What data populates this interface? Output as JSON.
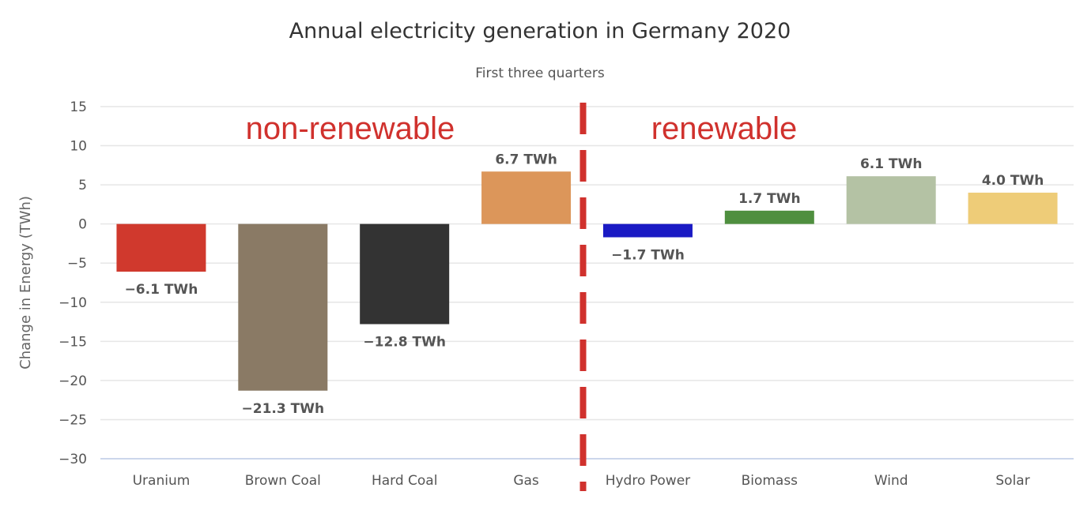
{
  "chart_data": {
    "type": "bar",
    "title": "Annual electricity generation in Germany 2020",
    "subtitle": "First three quarters",
    "xlabel": "",
    "ylabel": "Change in Energy (TWh)",
    "ylim": [
      -30,
      15
    ],
    "yticks": [
      15,
      10,
      5,
      0,
      -5,
      -10,
      -15,
      -20,
      -25,
      -30
    ],
    "grid": true,
    "categories": [
      "Uranium",
      "Brown Coal",
      "Hard Coal",
      "Gas",
      "Hydro Power",
      "Biomass",
      "Wind",
      "Solar"
    ],
    "values": [
      -6.1,
      -21.3,
      -12.8,
      6.7,
      -1.7,
      1.7,
      6.1,
      4.0
    ],
    "data_labels": [
      "−6.1 TWh",
      "−21.3 TWh",
      "−12.8 TWh",
      "6.7 TWh",
      "−1.7 TWh",
      "1.7 TWh",
      "6.1 TWh",
      "4.0 TWh"
    ],
    "colors": [
      "#d0392d",
      "#8a7a65",
      "#333333",
      "#dc965a",
      "#1a1ac4",
      "#4f8f3f",
      "#b4c2a4",
      "#eecc78"
    ],
    "annotations": [
      {
        "text": "non-renewable",
        "color": "#d0312d"
      },
      {
        "text": "renewable",
        "color": "#d0312d"
      }
    ],
    "divider": {
      "style": "dashed",
      "color": "#d0312d",
      "between": [
        "Gas",
        "Hydro Power"
      ]
    }
  }
}
